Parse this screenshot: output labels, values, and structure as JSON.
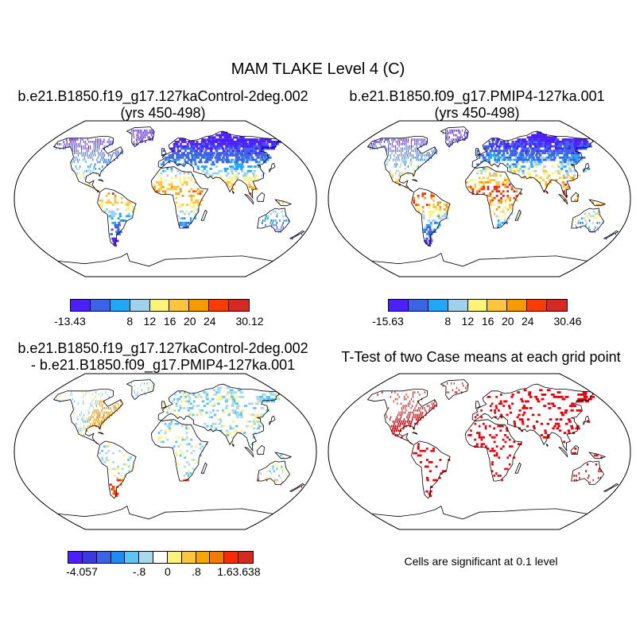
{
  "figure": {
    "title": "MAM TLAKE Level 4 (C)",
    "note": "Cells are significant at 0.1 level"
  },
  "panels": [
    {
      "id": "control",
      "title_line1": "b.e21.B1850.f19_g17.127kaControl-2deg.002",
      "title_line2": "(yrs 450-498)",
      "colorbar": {
        "colors": [
          "#4b1fff",
          "#3c62e6",
          "#1ea8f5",
          "#9fd1ec",
          "#fdf27a",
          "#fdc43d",
          "#f59a00",
          "#ff3a00",
          "#d52a24"
        ],
        "labels": [
          "-13.43",
          "8",
          "12",
          "16",
          "20",
          "24",
          "30.12"
        ]
      }
    },
    {
      "id": "pmip4",
      "title_line1": "b.e21.B1850.f09_g17.PMIP4-127ka.001",
      "title_line2": "(yrs 450-498)",
      "colorbar": {
        "colors": [
          "#4b1fff",
          "#3c62e6",
          "#1ea8f5",
          "#9fd1ec",
          "#fdf27a",
          "#fdc43d",
          "#f59a00",
          "#ff3a00",
          "#d52a24"
        ],
        "labels": [
          "-15.63",
          "8",
          "12",
          "16",
          "20",
          "24",
          "30.46"
        ]
      }
    },
    {
      "id": "difference",
      "title_line1": "b.e21.B1850.f19_g17.127kaControl-2deg.002",
      "title_line2": "- b.e21.B1850.f09_g17.PMIP4-127ka.001",
      "colorbar": {
        "colors": [
          "#4b1fff",
          "#3a3ae0",
          "#3c62e6",
          "#1e8cf0",
          "#5ec3f5",
          "#a9d9ef",
          "#ffffff",
          "#fdf27a",
          "#fdc43d",
          "#f5a600",
          "#f57a00",
          "#ff2a00",
          "#d52a24"
        ],
        "labels": [
          "-4.057",
          "-.8",
          "0",
          ".8",
          "1.6",
          "3.638"
        ]
      }
    },
    {
      "id": "ttest",
      "title_line1": "T-Test of two Case means at each grid point",
      "significant_color": "#e8000b"
    }
  ]
}
